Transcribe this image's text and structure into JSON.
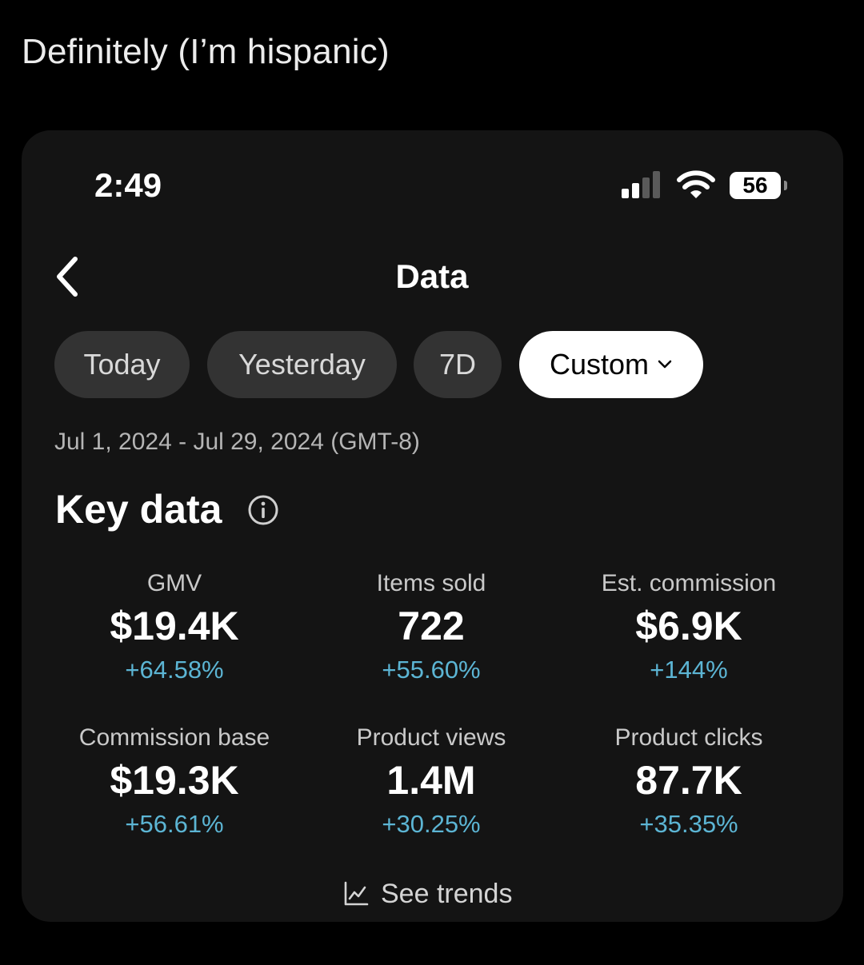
{
  "caption": "Definitely (I’m hispanic)",
  "status_bar": {
    "time": "2:49",
    "battery": "56",
    "icons": [
      "signal-icon",
      "wifi-icon",
      "battery-icon"
    ]
  },
  "header": {
    "title": "Data",
    "back_icon": "chevron-left-icon"
  },
  "filters": {
    "chips": [
      {
        "label": "Today",
        "active": false
      },
      {
        "label": "Yesterday",
        "active": false
      },
      {
        "label": "7D",
        "active": false
      },
      {
        "label": "Custom",
        "active": true,
        "icon": "chevron-down-icon"
      }
    ],
    "date_range": "Jul 1, 2024 - Jul 29, 2024 (GMT-8)"
  },
  "key_data": {
    "title": "Key data",
    "info_icon": "info-icon",
    "metrics": [
      {
        "label": "GMV",
        "value": "$19.4K",
        "change": "+64.58%"
      },
      {
        "label": "Items sold",
        "value": "722",
        "change": "+55.60%"
      },
      {
        "label": "Est. commission",
        "value": "$6.9K",
        "change": "+144%"
      },
      {
        "label": "Commission base",
        "value": "$19.3K",
        "change": "+56.61%"
      },
      {
        "label": "Product views",
        "value": "1.4M",
        "change": "+30.25%"
      },
      {
        "label": "Product clicks",
        "value": "87.7K",
        "change": "+35.35%"
      }
    ],
    "trends_link": "See trends",
    "trends_icon": "line-chart-icon"
  },
  "colors": {
    "background": "#000000",
    "card": "#141414",
    "chip": "#333333",
    "chip_active": "#ffffff",
    "positive_change": "#5cb5d4"
  }
}
